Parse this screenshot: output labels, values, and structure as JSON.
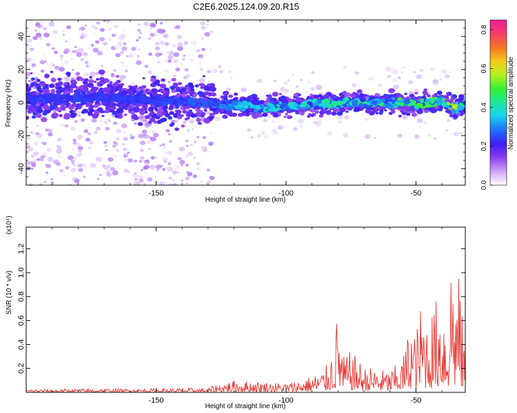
{
  "title": "C2E6.2025.124.09.20.R15",
  "spectrogram": {
    "xlabel": "Height of straight line (km)",
    "ylabel": "Frequency (Hz)",
    "xlim": [
      -200,
      -31
    ],
    "ylim": [
      -50,
      50
    ],
    "xticks": [
      "-150",
      "-100",
      "-50"
    ],
    "yticks": [
      "40",
      "20",
      "0",
      "-20",
      "-40"
    ],
    "noisy_region_end_km": -128
  },
  "colorbar": {
    "label": "Normalized spectral amplitude",
    "range": [
      0,
      0.85
    ],
    "ticks": [
      "0.0",
      "0.2",
      "0.4",
      "0.6",
      "0.8"
    ],
    "colors": [
      "#ffffff",
      "#cfa6f5",
      "#8a3cf0",
      "#3f1ff4",
      "#1f6cfa",
      "#19d2f0",
      "#1fe69c",
      "#33f033",
      "#b6f01e",
      "#f5c81e",
      "#f5781e",
      "#f53c6e",
      "#f01e96"
    ]
  },
  "chart_data": [
    {
      "type": "heatmap",
      "title": "C2E6.2025.124.09.20.R15",
      "xlabel": "Height of straight line (km)",
      "ylabel": "Frequency (Hz)",
      "xlim": [
        -200,
        -31
      ],
      "ylim": [
        -50,
        50
      ],
      "trace": {
        "x": [
          -200,
          -170,
          -150,
          -130,
          -120,
          -110,
          -100,
          -90,
          -80,
          -70,
          -60,
          -50,
          -45,
          -40,
          -35,
          -31
        ],
        "y": [
          2,
          3,
          1,
          0,
          -2,
          -3,
          -2,
          -1,
          -1,
          0,
          0,
          -1,
          0,
          1,
          -4,
          -1
        ]
      },
      "peak_values": {
        "x": [
          -200,
          -150,
          -130,
          -120,
          -110,
          -100,
          -90,
          -80,
          -70,
          -60,
          -50,
          -40,
          -35,
          -31
        ],
        "amplitude": [
          0.25,
          0.25,
          0.3,
          0.35,
          0.4,
          0.4,
          0.45,
          0.45,
          0.5,
          0.5,
          0.55,
          0.6,
          0.85,
          0.4
        ]
      }
    },
    {
      "type": "line",
      "xlabel": "Height of straight line (km)",
      "ylabel": "SNR (10 * v/v)",
      "y_scale_label": "(x10⁴)",
      "xlim": [
        -200,
        -31
      ],
      "ylim": [
        0,
        1.38
      ],
      "xticks": [
        "-150",
        "-100",
        "-50"
      ],
      "yticks": [
        "0.2",
        "0.4",
        "0.6",
        "0.8",
        "1.0",
        "1.2"
      ],
      "color": "#e8302a",
      "series": [
        {
          "x": [
            -200,
            -180,
            -160,
            -140,
            -130,
            -128,
            -120,
            -110,
            -100,
            -95,
            -90,
            -85,
            -82,
            -80,
            -78,
            -75,
            -70,
            -65,
            -60,
            -55,
            -52,
            -50,
            -48,
            -45,
            -42,
            -40,
            -38,
            -36,
            -35,
            -34,
            -33,
            -32,
            -31
          ],
          "y": [
            0.025,
            0.03,
            0.03,
            0.035,
            0.035,
            0.06,
            0.1,
            0.09,
            0.08,
            0.1,
            0.14,
            0.2,
            0.38,
            0.7,
            0.3,
            0.35,
            0.22,
            0.2,
            0.18,
            0.3,
            0.62,
            0.5,
            0.76,
            0.62,
            0.8,
            0.88,
            0.6,
            1.38,
            0.85,
            1.02,
            0.95,
            0.55,
            0.5
          ]
        }
      ]
    }
  ]
}
